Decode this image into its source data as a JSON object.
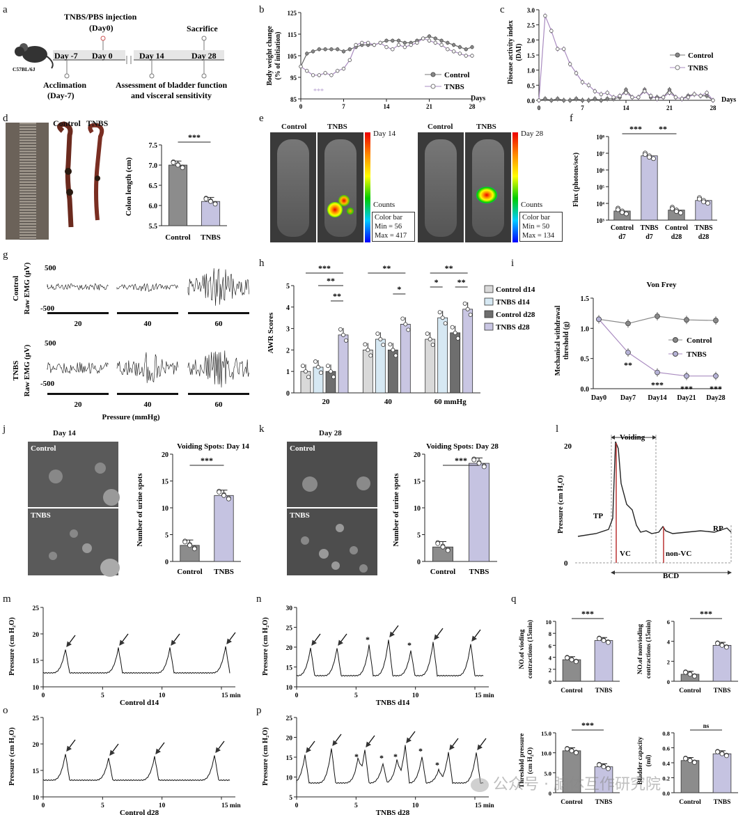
{
  "panel_letters": [
    "a",
    "b",
    "c",
    "d",
    "e",
    "f",
    "g",
    "h",
    "i",
    "j",
    "k",
    "l",
    "m",
    "n",
    "o",
    "p",
    "q"
  ],
  "a": {
    "injection": "TNBS/PBS injection",
    "injection_day": "(Day0)",
    "sacrifice": "Sacrifice",
    "mouse": "C57BL/6J",
    "timeline": [
      "Day -7",
      "Day 0",
      "Day 14",
      "Day 28"
    ],
    "acclimation": "Acclimation",
    "acclimation_day": "(Day-7)",
    "assessment_1": "Assessment of bladder function",
    "assessment_2": "and visceral sensitivity"
  },
  "b": {
    "ylabel_1": "Body weight change",
    "ylabel_2": "(% of initiation)",
    "yticks": [
      "85",
      "95",
      "105",
      "115",
      "125"
    ],
    "xticks": [
      "0",
      "7",
      "14",
      "21",
      "28"
    ],
    "xunit": "Days",
    "legend": [
      "Control",
      "TNBS"
    ],
    "sig": "***"
  },
  "c": {
    "ylabel_1": "Disease activity index",
    "ylabel_2": "(DAI)",
    "yticks": [
      "0.0",
      "0.5",
      "1.0",
      "1.5",
      "2.0",
      "2.5",
      "3.0"
    ],
    "xticks": [
      "0",
      "7",
      "14",
      "21",
      "28"
    ],
    "xunit": "Days",
    "legend": [
      "Control",
      "TNBS"
    ]
  },
  "d": {
    "photo_labels": [
      "Control",
      "TNBS"
    ],
    "ylabel": "Colon length (cm)",
    "yticks": [
      "5.5",
      "6.0",
      "6.5",
      "7.0",
      "7.5"
    ],
    "xlabels": [
      "Control",
      "TNBS"
    ],
    "sig": "***"
  },
  "e": {
    "left_labels": [
      "Control",
      "TNBS"
    ],
    "right_labels": [
      "Control",
      "TNBS"
    ],
    "day_left": "Day 14",
    "day_right": "Day 28",
    "counts": "Counts",
    "colorbar_left": [
      "Color bar",
      "Min = 56",
      "Max = 417"
    ],
    "colorbar_right": [
      "Color bar",
      "Min = 50",
      "Max = 134"
    ]
  },
  "f": {
    "ylabel": "Flux (photons/sec)",
    "yticks": [
      "10³",
      "10⁴",
      "10⁵",
      "10⁶",
      "10⁷",
      "10⁸"
    ],
    "xlabels": [
      [
        "Control",
        "d7"
      ],
      [
        "TNBS",
        "d7"
      ],
      [
        "Control",
        "d28"
      ],
      [
        "TNBS",
        "d28"
      ]
    ],
    "sig": [
      "***",
      "**"
    ]
  },
  "g": {
    "rows": [
      "Control",
      "TNBS"
    ],
    "ylabel": "Raw EMG (μV)",
    "ytop": "500",
    "ybottom": "-500",
    "pressures": [
      "20",
      "40",
      "60"
    ],
    "xlabel": "Pressure (mmHg)"
  },
  "h": {
    "ylabel": "AWR Scores",
    "yticks": [
      "0",
      "1",
      "2",
      "3",
      "4",
      "5"
    ],
    "xgroups": [
      "20",
      "40",
      "60 mmHg"
    ],
    "legend": [
      "Control d14",
      "TNBS d14",
      "Control d28",
      "TNBS d28"
    ],
    "sig": [
      "***",
      "**",
      "**",
      "**",
      "*",
      "**",
      "*",
      "**"
    ]
  },
  "i": {
    "title": "Von Frey",
    "ylabel_1": "Mechanical withdrawal",
    "ylabel_2": "threshold (g)",
    "yticks": [
      "0.0",
      "0.5",
      "1.0",
      "1.5"
    ],
    "xticks": [
      "Day0",
      "Day7",
      "Day14",
      "Day21",
      "Day28"
    ],
    "legend": [
      "Control",
      "TNBS"
    ],
    "sig": [
      "**",
      "***",
      "***",
      "***"
    ]
  },
  "j": {
    "day": "Day 14",
    "photo_labels": [
      "Control",
      "TNBS"
    ],
    "title": "Voiding Spots: Day 14",
    "ylabel": "Number of urine spots",
    "yticks": [
      "0",
      "5",
      "10",
      "15",
      "20"
    ],
    "xlabels": [
      "Control",
      "TNBS"
    ],
    "sig": "***"
  },
  "k": {
    "day": "Day 28",
    "photo_labels": [
      "Control",
      "TNBS"
    ],
    "title": "Voiding Spots: Day 28",
    "ylabel": "Number of urine spots",
    "yticks": [
      "0",
      "5",
      "10",
      "15",
      "20"
    ],
    "xlabels": [
      "Control",
      "TNBS"
    ],
    "sig": "***"
  },
  "l": {
    "voiding": "Voiding",
    "ylabel": "Pressure (cm H₂O)",
    "ytop": "20",
    "ybottom": "0",
    "tp": "TP",
    "rp": "RP",
    "vc": "VC",
    "nonvc": "non-VC",
    "bcd": "BCD"
  },
  "m": {
    "ylabel": "Pressure (cm H₂O)",
    "yticks": [
      "10",
      "15",
      "20",
      "25"
    ],
    "xticks": [
      "0",
      "5",
      "10",
      "15 min"
    ],
    "xlabel": "Control d14"
  },
  "n": {
    "ylabel": "Pressure (cm H₂O)",
    "yticks": [
      "10",
      "15",
      "20",
      "25",
      "30"
    ],
    "xticks": [
      "0",
      "5",
      "10",
      "15 min"
    ],
    "xlabel": "TNBS d14"
  },
  "o": {
    "ylabel": "Pressure (cm H₂O)",
    "yticks": [
      "10",
      "15",
      "20",
      "25"
    ],
    "xticks": [
      "0",
      "5",
      "10",
      "15 min"
    ],
    "xlabel": "Control d28"
  },
  "p": {
    "ylabel": "Pressure (cm H₂O)",
    "yticks": [
      "5",
      "10",
      "15",
      "20",
      "25"
    ],
    "xticks": [
      "0",
      "5",
      "10",
      "15 min"
    ],
    "xlabel": "TNBS d28"
  },
  "q": {
    "plots": [
      {
        "ylabel_1": "NO.of vioding",
        "ylabel_2": "contractions (15min)",
        "yticks": [
          "0",
          "2",
          "4",
          "6",
          "8",
          "10"
        ],
        "sig": "***"
      },
      {
        "ylabel_1": "NO.of nonvioding",
        "ylabel_2": "contractions (15min)",
        "yticks": [
          "0",
          "2",
          "4",
          "6"
        ],
        "sig": "***"
      },
      {
        "ylabel_1": "Threshold pressure",
        "ylabel_2": "(cm H₂O)",
        "yticks": [
          "0",
          "5.0",
          "10.0",
          "15.0"
        ],
        "sig": "***"
      },
      {
        "ylabel_1": "Bladder capacity",
        "ylabel_2": "(ml)",
        "yticks": [
          "0.0",
          "0.2",
          "0.4",
          "0.6",
          "0.8"
        ],
        "sig": "ns"
      }
    ],
    "xlabels": [
      "Control",
      "TNBS"
    ]
  },
  "watermark": "公众号 · 脑体互作研究院",
  "colors": {
    "control": "#888888",
    "tnbs": "#b5b2d6",
    "tnbs_line": "#a98bc0",
    "control_bar": "#8c8c8c",
    "tnbs_bar": "#c5c3e1",
    "ctrl_d14": "#d9d9d9",
    "tnbs_d14": "#d6e8f3",
    "ctrl_d28": "#6e6e6e",
    "tnbs_d28": "#c9c6e3"
  },
  "chart_data": [
    {
      "type": "line",
      "id": "b",
      "x": [
        0,
        1,
        2,
        3,
        4,
        5,
        6,
        7,
        8,
        9,
        10,
        11,
        12,
        13,
        14,
        15,
        16,
        17,
        18,
        19,
        20,
        21,
        22,
        23,
        24,
        25,
        26,
        27,
        28
      ],
      "series": [
        {
          "name": "Control",
          "values": [
            100,
            106,
            107,
            108,
            108,
            108,
            108,
            107,
            108,
            109,
            110,
            110,
            110,
            111,
            112,
            112,
            112,
            111,
            111,
            112,
            113,
            114,
            113,
            112,
            111,
            110,
            109,
            108,
            109
          ]
        },
        {
          "name": "TNBS",
          "values": [
            100,
            98,
            96,
            96,
            97,
            96,
            98,
            99,
            103,
            110,
            111,
            111,
            110,
            111,
            109,
            108,
            110,
            109,
            110,
            111,
            113,
            112,
            111,
            110,
            108,
            107,
            106,
            105,
            105
          ]
        }
      ],
      "ylim": [
        85,
        125
      ]
    },
    {
      "type": "line",
      "id": "c",
      "x": [
        0,
        1,
        2,
        3,
        4,
        5,
        6,
        7,
        8,
        9,
        10,
        11,
        12,
        13,
        14,
        15,
        16,
        17,
        18,
        19,
        20,
        21,
        22,
        23,
        24,
        25,
        26,
        27,
        28
      ],
      "series": [
        {
          "name": "Control",
          "values": [
            0,
            0.05,
            0,
            0.05,
            0,
            0,
            0.05,
            0,
            0,
            0.05,
            0,
            0.05,
            0.05,
            0.1,
            0.35,
            0.1,
            0.1,
            0.35,
            0.1,
            0.1,
            0.1,
            0.35,
            0.1,
            0.05,
            0.15,
            0.2,
            0.15,
            0.15,
            0.0
          ]
        },
        {
          "name": "TNBS",
          "values": [
            0,
            2.8,
            2.3,
            1.7,
            1.7,
            1.2,
            0.9,
            0.6,
            0.5,
            0.3,
            0.2,
            0.25,
            0.1,
            0.15,
            0.25,
            0.1,
            0.1,
            0.3,
            0.15,
            0.05,
            0.1,
            0.25,
            0.1,
            0.05,
            0.1,
            0.2,
            0.15,
            0.25,
            0.0
          ]
        }
      ],
      "ylim": [
        0,
        3
      ]
    },
    {
      "type": "bar",
      "id": "d",
      "categories": [
        "Control",
        "TNBS"
      ],
      "values": [
        7.0,
        6.1
      ],
      "ylim": [
        5.5,
        7.5
      ]
    },
    {
      "type": "bar",
      "id": "f",
      "categories": [
        "Control d7",
        "TNBS d7",
        "Control d28",
        "TNBS d28"
      ],
      "values": [
        3500,
        7000000,
        4000,
        15000
      ],
      "ylim": [
        1000,
        100000000
      ]
    },
    {
      "type": "bar",
      "id": "h",
      "categories": [
        "20",
        "40",
        "60 mmHg"
      ],
      "series": [
        {
          "name": "Control d14",
          "values": [
            1.0,
            2.0,
            2.5
          ]
        },
        {
          "name": "TNBS d14",
          "values": [
            1.2,
            2.5,
            3.5
          ]
        },
        {
          "name": "Control d28",
          "values": [
            1.0,
            2.0,
            2.8
          ]
        },
        {
          "name": "TNBS d28",
          "values": [
            2.7,
            3.2,
            3.9
          ]
        }
      ],
      "ylim": [
        0,
        5
      ]
    },
    {
      "type": "line",
      "id": "i",
      "categories": [
        "Day0",
        "Day7",
        "Day14",
        "Day21",
        "Day28"
      ],
      "series": [
        {
          "name": "Control",
          "values": [
            1.15,
            1.08,
            1.2,
            1.14,
            1.13
          ]
        },
        {
          "name": "TNBS",
          "values": [
            1.15,
            0.6,
            0.27,
            0.21,
            0.21
          ]
        }
      ],
      "ylim": [
        0,
        1.5
      ]
    },
    {
      "type": "bar",
      "id": "j",
      "categories": [
        "Control",
        "TNBS"
      ],
      "values": [
        3.0,
        12.3
      ],
      "ylim": [
        0,
        20
      ]
    },
    {
      "type": "bar",
      "id": "k",
      "categories": [
        "Control",
        "TNBS"
      ],
      "values": [
        2.7,
        18.3
      ],
      "ylim": [
        0,
        20
      ]
    },
    {
      "type": "bar",
      "id": "q1",
      "categories": [
        "Control",
        "TNBS"
      ],
      "values": [
        3.6,
        6.8
      ],
      "ylim": [
        0,
        10
      ]
    },
    {
      "type": "bar",
      "id": "q2",
      "categories": [
        "Control",
        "TNBS"
      ],
      "values": [
        0.7,
        3.6
      ],
      "ylim": [
        0,
        6
      ]
    },
    {
      "type": "bar",
      "id": "q3",
      "categories": [
        "Control",
        "TNBS"
      ],
      "values": [
        10.5,
        6.5
      ],
      "ylim": [
        0,
        15
      ]
    },
    {
      "type": "bar",
      "id": "q4",
      "categories": [
        "Control",
        "TNBS"
      ],
      "values": [
        0.43,
        0.52
      ],
      "ylim": [
        0,
        0.8
      ]
    }
  ]
}
